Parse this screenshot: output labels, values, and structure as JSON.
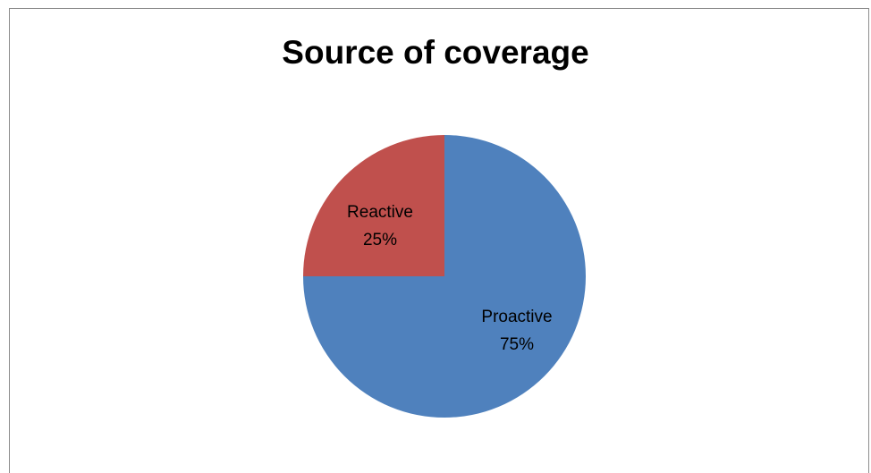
{
  "chart_data": {
    "type": "pie",
    "title": "Source of coverage",
    "slices": [
      {
        "label": "Proactive",
        "value": 75,
        "percent_label": "75%",
        "color": "#4f81bd"
      },
      {
        "label": "Reactive",
        "value": 25,
        "percent_label": "25%",
        "color": "#c0504d"
      }
    ],
    "start_angle_deg": 0,
    "direction": "clockwise",
    "legend": "none",
    "data_labels": "inside"
  }
}
